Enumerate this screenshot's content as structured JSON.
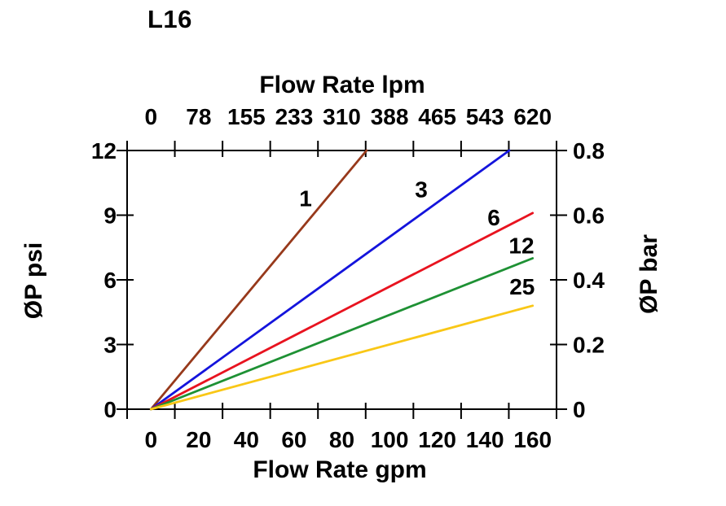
{
  "page": {
    "background": "#ffffff"
  },
  "chart_data": {
    "type": "line",
    "title": "L16",
    "top_axis": {
      "label": "Flow Rate lpm",
      "ticks": [
        "0",
        "78",
        "155",
        "233",
        "310",
        "388",
        "465",
        "543",
        "620"
      ]
    },
    "bottom_axis": {
      "label": "Flow Rate gpm",
      "ticks": [
        "0",
        "20",
        "40",
        "60",
        "80",
        "100",
        "120",
        "140",
        "160"
      ],
      "range_gpm": [
        0,
        160
      ]
    },
    "left_axis": {
      "label": "ØP psi",
      "ticks": [
        "0",
        "3",
        "6",
        "9",
        "12"
      ],
      "range": [
        0,
        12
      ]
    },
    "right_axis": {
      "label": "ØP bar",
      "ticks": [
        "0",
        "0.2",
        "0.4",
        "0.6",
        "0.8"
      ],
      "range": [
        0,
        0.8
      ]
    },
    "grid": false,
    "legend": "inline-curve-labels",
    "axis_color": "#000000",
    "series": [
      {
        "name": "1",
        "color": "#97391B",
        "points_gpm_psi": [
          [
            0,
            0
          ],
          [
            90.4,
            12
          ]
        ],
        "label_at_gpm_psi": [
          64.8,
          9.8
        ],
        "clipped_at_top": true
      },
      {
        "name": "3",
        "color": "#1414DC",
        "points_gpm_psi": [
          [
            0,
            0
          ],
          [
            150.2,
            12
          ]
        ],
        "label_at_gpm_psi": [
          113.3,
          10.2
        ],
        "clipped_at_top": true
      },
      {
        "name": "6",
        "color": "#E8131F",
        "points_gpm_psi": [
          [
            0,
            0
          ],
          [
            160,
            9.1
          ]
        ],
        "label_at_gpm_psi": [
          143.7,
          8.9
        ]
      },
      {
        "name": "12",
        "color": "#1E9134",
        "points_gpm_psi": [
          [
            0,
            0
          ],
          [
            160,
            7.0
          ]
        ],
        "label_at_gpm_psi": [
          155.3,
          7.6
        ]
      },
      {
        "name": "25",
        "color": "#F9C716",
        "points_gpm_psi": [
          [
            0,
            0
          ],
          [
            160,
            4.8
          ]
        ],
        "label_at_gpm_psi": [
          155.6,
          5.7
        ]
      }
    ]
  }
}
